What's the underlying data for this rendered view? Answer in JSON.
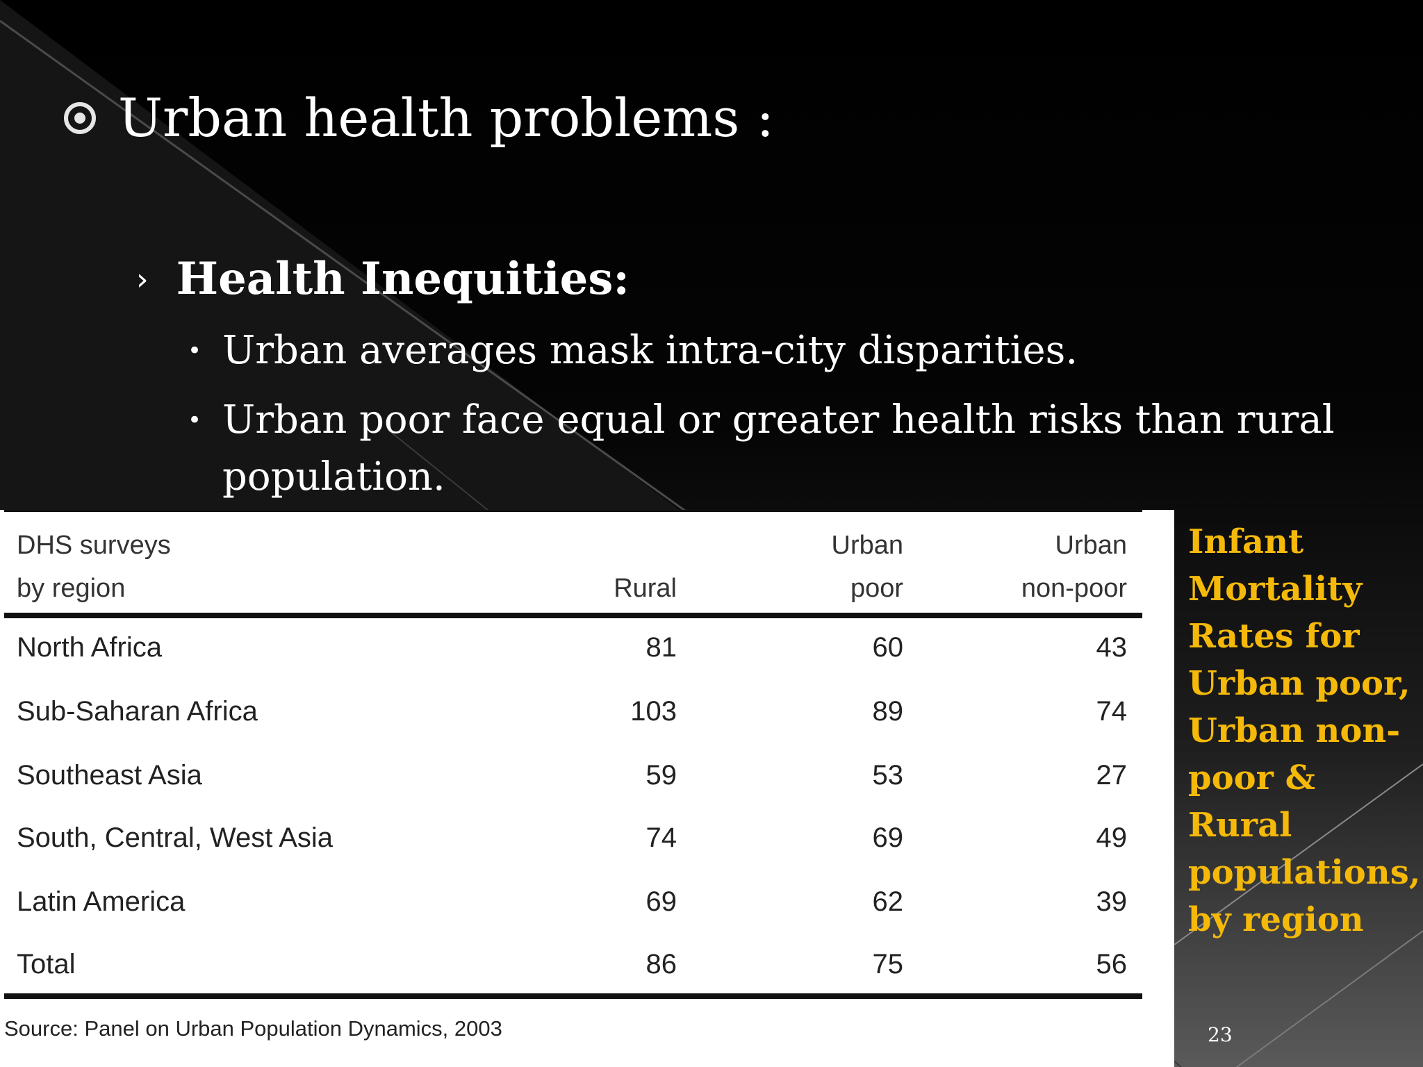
{
  "slide": {
    "title": "Urban health problems :",
    "subheading": "Health Inequities:",
    "points": [
      "Urban averages mask intra-city disparities.",
      "Urban poor face equal or greater health risks than rural population."
    ],
    "page_number": "23",
    "bullet_icons": {
      "title": "circle-dot-bullet-icon",
      "sub": "chevron-right-icon",
      "point": "small-dot-bullet-icon"
    },
    "colors": {
      "background": "#000000",
      "text": "#ffffff",
      "caption": "#f5b90a"
    }
  },
  "table": {
    "headers": {
      "region": [
        "DHS surveys",
        "by region"
      ],
      "rural": "Rural",
      "urban_poor": [
        "Urban",
        "poor"
      ],
      "urban_non_poor": [
        "Urban",
        "non-poor"
      ]
    },
    "rows": [
      {
        "region": "North Africa",
        "rural": "81",
        "urban_poor": "60",
        "urban_non_poor": "43"
      },
      {
        "region": "Sub-Saharan Africa",
        "rural": "103",
        "urban_poor": "89",
        "urban_non_poor": "74"
      },
      {
        "region": "Southeast Asia",
        "rural": "59",
        "urban_poor": "53",
        "urban_non_poor": "27"
      },
      {
        "region": "South, Central, West Asia",
        "rural": "74",
        "urban_poor": "69",
        "urban_non_poor": "49"
      },
      {
        "region": "Latin America",
        "rural": "69",
        "urban_poor": "62",
        "urban_non_poor": "39"
      },
      {
        "region": "Total",
        "rural": "86",
        "urban_poor": "75",
        "urban_non_poor": "56"
      }
    ],
    "source": "Source: Panel on Urban Population Dynamics, 2003"
  },
  "caption": "Infant Mortality Rates for Urban poor, Urban non-poor & Rural populations, by region"
}
